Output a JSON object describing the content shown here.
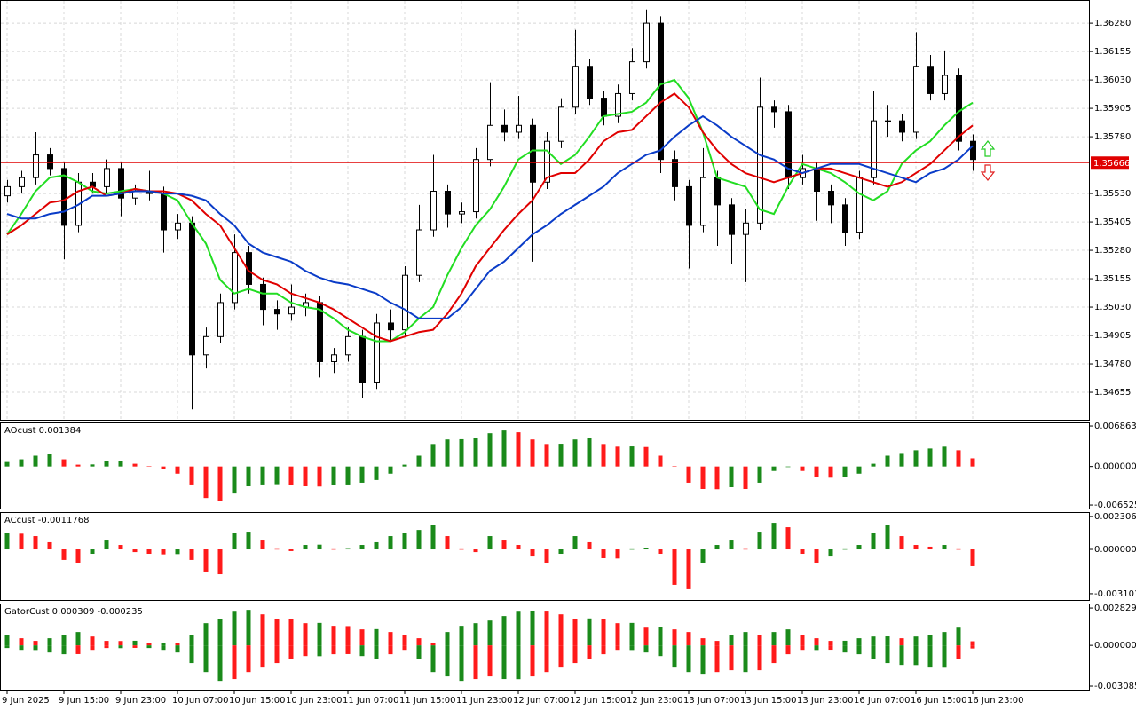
{
  "chart_data": [
    {
      "type": "candlestick",
      "ylim": [
        1.34534,
        1.36382
      ],
      "yticks": [
        {
          "value": 1.3628,
          "label": "1.36280"
        },
        1.36155,
        {
          "value": 1.3603,
          "label": "1.36030"
        },
        1.35905,
        {
          "value": 1.3578,
          "label": "1.35780"
        },
        {
          "value": 1.3553,
          "label": "1.35530"
        },
        1.35405,
        {
          "value": 1.3528,
          "label": "1.35280"
        },
        1.35155,
        {
          "value": 1.3503,
          "label": "1.35030"
        },
        1.34905,
        {
          "value": 1.3478,
          "label": "1.34780"
        },
        1.34655
      ],
      "grid": true,
      "up_color": "#ffffff",
      "down_color": "#000000",
      "current_price": 1.35666,
      "current_price_color": "#e00000",
      "time_labels": [
        "9 Jun 2025",
        "9 Jun 15:00",
        "9 Jun 23:00",
        "10 Jun 07:00",
        "10 Jun 15:00",
        "10 Jun 23:00",
        "11 Jun 07:00",
        "11 Jun 15:00",
        "11 Jun 23:00",
        "12 Jun 07:00",
        "12 Jun 15:00",
        "12 Jun 23:00",
        "13 Jun 07:00",
        "13 Jun 15:00",
        "13 Jun 23:00",
        "16 Jun 07:00",
        "16 Jun 15:00",
        "16 Jun 23:00"
      ],
      "candles": [
        [
          1.3552,
          1.3559,
          1.3549,
          1.3556
        ],
        [
          1.3556,
          1.3563,
          1.3553,
          1.356
        ],
        [
          1.356,
          1.358,
          1.3557,
          1.357
        ],
        [
          1.357,
          1.3573,
          1.3561,
          1.3564
        ],
        [
          1.3564,
          1.3567,
          1.3524,
          1.3539
        ],
        [
          1.3539,
          1.3562,
          1.3536,
          1.3558
        ],
        [
          1.3558,
          1.3562,
          1.3553,
          1.3556
        ],
        [
          1.3556,
          1.3568,
          1.3553,
          1.3564
        ],
        [
          1.3564,
          1.3567,
          1.3543,
          1.3551
        ],
        [
          1.3551,
          1.3557,
          1.3548,
          1.3554
        ],
        [
          1.3554,
          1.3563,
          1.355,
          1.3553
        ],
        [
          1.3553,
          1.3556,
          1.3527,
          1.3537
        ],
        [
          1.3537,
          1.3544,
          1.3533,
          1.354
        ],
        [
          1.354,
          1.3543,
          1.3458,
          1.3482
        ],
        [
          1.3482,
          1.3494,
          1.3476,
          1.349
        ],
        [
          1.349,
          1.3509,
          1.3487,
          1.3505
        ],
        [
          1.3505,
          1.3535,
          1.3502,
          1.3527
        ],
        [
          1.3527,
          1.353,
          1.3509,
          1.3513
        ],
        [
          1.3513,
          1.3516,
          1.3495,
          1.3502
        ],
        [
          1.3502,
          1.3506,
          1.3493,
          1.35
        ],
        [
          1.35,
          1.3513,
          1.3497,
          1.3503
        ],
        [
          1.3503,
          1.3509,
          1.3499,
          1.3505
        ],
        [
          1.3505,
          1.3508,
          1.3472,
          1.3479
        ],
        [
          1.3479,
          1.3485,
          1.3474,
          1.3482
        ],
        [
          1.3482,
          1.3494,
          1.3479,
          1.349
        ],
        [
          1.349,
          1.3493,
          1.3463,
          1.347
        ],
        [
          1.347,
          1.35,
          1.3467,
          1.3496
        ],
        [
          1.3496,
          1.3502,
          1.3488,
          1.3493
        ],
        [
          1.3493,
          1.3521,
          1.349,
          1.3517
        ],
        [
          1.3517,
          1.3548,
          1.3514,
          1.3537
        ],
        [
          1.3537,
          1.357,
          1.3534,
          1.3554
        ],
        [
          1.3554,
          1.3557,
          1.3538,
          1.3544
        ],
        [
          1.3544,
          1.3549,
          1.354,
          1.3545
        ],
        [
          1.3545,
          1.3573,
          1.3542,
          1.3568
        ],
        [
          1.3568,
          1.3602,
          1.3565,
          1.3583
        ],
        [
          1.3583,
          1.359,
          1.3576,
          1.358
        ],
        [
          1.358,
          1.3596,
          1.3577,
          1.3583
        ],
        [
          1.3583,
          1.3586,
          1.3523,
          1.3558
        ],
        [
          1.3558,
          1.358,
          1.3555,
          1.3576
        ],
        [
          1.3576,
          1.3595,
          1.3573,
          1.3591
        ],
        [
          1.3591,
          1.3625,
          1.3588,
          1.3609
        ],
        [
          1.3609,
          1.3612,
          1.3592,
          1.3595
        ],
        [
          1.3595,
          1.3598,
          1.3583,
          1.3587
        ],
        [
          1.3587,
          1.3601,
          1.3584,
          1.3597
        ],
        [
          1.3597,
          1.3617,
          1.3594,
          1.3611
        ],
        [
          1.3611,
          1.3634,
          1.3608,
          1.3628
        ],
        [
          1.3628,
          1.3631,
          1.3562,
          1.3568
        ],
        [
          1.3568,
          1.3572,
          1.355,
          1.3556
        ],
        [
          1.3556,
          1.3559,
          1.352,
          1.3539
        ],
        [
          1.3539,
          1.3573,
          1.3536,
          1.356
        ],
        [
          1.356,
          1.3563,
          1.353,
          1.3548
        ],
        [
          1.3548,
          1.3551,
          1.3522,
          1.3535
        ],
        [
          1.3535,
          1.3546,
          1.3514,
          1.354
        ],
        [
          1.354,
          1.3604,
          1.3537,
          1.3591
        ],
        [
          1.3591,
          1.3594,
          1.3582,
          1.3589
        ],
        [
          1.3589,
          1.3592,
          1.3555,
          1.356
        ],
        [
          1.356,
          1.357,
          1.3557,
          1.3564
        ],
        [
          1.3564,
          1.3567,
          1.3541,
          1.3554
        ],
        [
          1.3554,
          1.3557,
          1.354,
          1.3548
        ],
        [
          1.3548,
          1.3551,
          1.353,
          1.3536
        ],
        [
          1.3536,
          1.3563,
          1.3533,
          1.356
        ],
        [
          1.356,
          1.3598,
          1.3557,
          1.3585
        ],
        [
          1.3585,
          1.3592,
          1.3578,
          1.3585
        ],
        [
          1.3585,
          1.3588,
          1.3576,
          1.358
        ],
        [
          1.358,
          1.3624,
          1.3577,
          1.3609
        ],
        [
          1.3609,
          1.3614,
          1.3594,
          1.3597
        ],
        [
          1.3597,
          1.3616,
          1.3594,
          1.3605
        ],
        [
          1.3605,
          1.3608,
          1.3572,
          1.3576
        ],
        [
          1.3576,
          1.3579,
          1.3563,
          1.3568
        ]
      ],
      "series": [
        {
          "color": "#22dd22",
          "values": [
            1.3535,
            1.3544,
            1.3554,
            1.356,
            1.3561,
            1.3558,
            1.3554,
            1.3553,
            1.3554,
            1.3555,
            1.3554,
            1.3553,
            1.355,
            1.354,
            1.3531,
            1.3515,
            1.3509,
            1.3511,
            1.3509,
            1.3509,
            1.3505,
            1.3503,
            1.3502,
            1.3498,
            1.3493,
            1.349,
            1.3488,
            1.3488,
            1.3492,
            1.3498,
            1.3503,
            1.3517,
            1.3529,
            1.3539,
            1.3546,
            1.3556,
            1.3568,
            1.3572,
            1.3572,
            1.3566,
            1.357,
            1.3578,
            1.3587,
            1.3588,
            1.3589,
            1.3593,
            1.3601,
            1.3603,
            1.3595,
            1.358,
            1.356,
            1.3558,
            1.3556,
            1.3546,
            1.3544,
            1.3556,
            1.3566,
            1.3564,
            1.3562,
            1.3558,
            1.3553,
            1.355,
            1.3554,
            1.3566,
            1.3572,
            1.3576,
            1.3583,
            1.3589,
            1.3593
          ]
        },
        {
          "color": "#e00000",
          "values": [
            1.3535,
            1.3539,
            1.3544,
            1.3549,
            1.355,
            1.3554,
            1.3556,
            1.3552,
            1.3553,
            1.3555,
            1.3554,
            1.3554,
            1.3553,
            1.355,
            1.3544,
            1.3539,
            1.3529,
            1.3519,
            1.3515,
            1.3513,
            1.3509,
            1.3507,
            1.3505,
            1.3502,
            1.3498,
            1.3494,
            1.349,
            1.3488,
            1.349,
            1.3492,
            1.3493,
            1.35,
            1.3509,
            1.3521,
            1.3529,
            1.3537,
            1.3544,
            1.355,
            1.356,
            1.3562,
            1.3562,
            1.3568,
            1.3576,
            1.358,
            1.3581,
            1.3587,
            1.3593,
            1.3597,
            1.3591,
            1.358,
            1.3572,
            1.3566,
            1.3562,
            1.356,
            1.3558,
            1.356,
            1.3562,
            1.3564,
            1.3564,
            1.3562,
            1.356,
            1.3558,
            1.3556,
            1.3558,
            1.3562,
            1.3566,
            1.3572,
            1.3578,
            1.3583
          ]
        },
        {
          "color": "#0a3cc8",
          "values": [
            1.3544,
            1.3542,
            1.3542,
            1.3544,
            1.3545,
            1.3548,
            1.3552,
            1.3552,
            1.3553,
            1.3554,
            1.3554,
            1.3553,
            1.3553,
            1.3552,
            1.355,
            1.3544,
            1.3539,
            1.3531,
            1.3527,
            1.3525,
            1.3523,
            1.3519,
            1.3516,
            1.3514,
            1.3513,
            1.3511,
            1.3509,
            1.3505,
            1.3502,
            1.3498,
            1.3498,
            1.3498,
            1.3503,
            1.3511,
            1.3519,
            1.3523,
            1.3529,
            1.3535,
            1.3539,
            1.3544,
            1.3548,
            1.3552,
            1.3556,
            1.3562,
            1.3566,
            1.357,
            1.3572,
            1.3578,
            1.3583,
            1.3587,
            1.3583,
            1.3578,
            1.3574,
            1.357,
            1.3568,
            1.3564,
            1.3562,
            1.3564,
            1.3566,
            1.3566,
            1.3566,
            1.3564,
            1.3562,
            1.356,
            1.3558,
            1.3562,
            1.3564,
            1.3568,
            1.3574
          ]
        }
      ]
    },
    {
      "type": "histogram",
      "title": "AOcust 0.001384",
      "ylim": [
        -0.00712,
        0.00747
      ],
      "yticks": [
        0.006863,
        {
          "value": 0,
          "label": "0.000000"
        },
        -0.006525
      ],
      "up_color": "#1a8a1a",
      "down_color": "#ff1a1a",
      "values": [
        0.00076,
        0.00122,
        0.00183,
        0.00214,
        0.00122,
        0.00031,
        0.00035,
        0.00092,
        0.00095,
        0.00046,
        3e-05,
        -0.00046,
        -0.00122,
        -0.00305,
        -0.00534,
        -0.0058,
        -0.00458,
        -0.00336,
        -0.00305,
        -0.003,
        -0.0031,
        -0.00336,
        -0.0034,
        -0.0031,
        -0.00305,
        -0.00275,
        -0.00229,
        -0.00122,
        0.00031,
        0.00183,
        0.00381,
        0.00458,
        0.00462,
        0.00488,
        0.00564,
        0.0061,
        0.0058,
        0.00458,
        0.00381,
        0.00385,
        0.00458,
        0.00488,
        0.00381,
        0.00336,
        0.0034,
        0.0033,
        0.00183,
        5e-05,
        -0.00275,
        -0.00381,
        -0.00385,
        -0.00351,
        -0.00381,
        -0.00275,
        -0.00076,
        -0.0001,
        -0.00076,
        -0.00183,
        -0.0019,
        -0.0018,
        -0.00122,
        0.00046,
        0.00183,
        0.00229,
        0.00275,
        0.00305,
        0.00336,
        0.00275,
        0.001384
      ]
    },
    {
      "type": "histogram",
      "title": "ACcust -0.0011768",
      "ylim": [
        -0.00354,
        0.00261
      ],
      "yticks": [
        0.0023065,
        {
          "value": 0,
          "label": "0.0000000"
        },
        {
          "value": -0.003101,
          "label": "-0.0031010"
        }
      ],
      "up_color": "#1a8a1a",
      "down_color": "#ff1a1a",
      "values": [
        0.00112,
        0.0011,
        0.00093,
        0.0005,
        -0.00074,
        -0.00093,
        -0.00031,
        0.00062,
        0.00031,
        -0.00019,
        -0.00031,
        -0.00035,
        -0.00033,
        -0.00074,
        -0.00155,
        -0.00174,
        0.00112,
        0.00124,
        0.00062,
        2e-05,
        -0.00012,
        0.00031,
        0.00033,
        1e-05,
        3e-05,
        0.00031,
        0.0005,
        0.00093,
        0.00112,
        0.00136,
        0.00174,
        0.00093,
        1e-05,
        -0.00019,
        0.00093,
        0.00062,
        0.00031,
        -0.0005,
        -0.00093,
        -0.00031,
        0.00093,
        0.0005,
        -0.00062,
        -0.00064,
        1e-05,
        0.00012,
        -0.00031,
        -0.00248,
        -0.00279,
        -0.00093,
        0.00031,
        0.00062,
        2e-05,
        0.00124,
        0.00186,
        0.00155,
        -0.00031,
        -0.00093,
        -0.0005,
        1e-05,
        0.00031,
        0.00112,
        0.00174,
        0.00093,
        0.00031,
        0.00019,
        0.00031,
        1e-05,
        -0.0011768
      ]
    },
    {
      "type": "gator",
      "title": "GatorCust 0.000309 -0.000235",
      "ylim": [
        -0.00342,
        0.00317
      ],
      "yticks": [
        0.002829,
        {
          "value": 0,
          "label": "0.000000"
        },
        -0.003085
      ],
      "up_color": "#1a8a1a",
      "down_color": "#ff1a1a",
      "upper": [
        0.00081,
        0.00054,
        0.00034,
        0.00054,
        0.00081,
        0.00101,
        0.00067,
        0.00034,
        0.00033,
        0.00035,
        0.0002,
        0.00021,
        0.00019,
        0.00081,
        0.00168,
        0.00202,
        0.00255,
        0.00269,
        0.00235,
        0.00202,
        0.002,
        0.00168,
        0.0017,
        0.00148,
        0.00146,
        0.00121,
        0.00123,
        0.00101,
        0.00081,
        0.00054,
        0.0002,
        0.00101,
        0.00148,
        0.00168,
        0.00188,
        0.00222,
        0.00255,
        0.00258,
        0.00256,
        0.00235,
        0.00202,
        0.00204,
        0.002,
        0.00168,
        0.0017,
        0.00134,
        0.00136,
        0.00121,
        0.00101,
        0.00054,
        0.00034,
        0.00081,
        0.00101,
        0.00081,
        0.00101,
        0.00121,
        0.00081,
        0.00054,
        0.00034,
        0.00035,
        0.00054,
        0.00067,
        0.00068,
        0.00054,
        0.00067,
        0.00081,
        0.00101,
        0.00134,
        0.000309
      ],
      "lower": [
        -0.0002,
        -0.00034,
        -0.00035,
        -0.00054,
        -0.00067,
        -0.00066,
        -0.00034,
        -0.0002,
        -0.00021,
        -0.00019,
        -0.0002,
        -0.00034,
        -0.00054,
        -0.00134,
        -0.00202,
        -0.00269,
        -0.00255,
        -0.00202,
        -0.00168,
        -0.00134,
        -0.00101,
        -0.00081,
        -0.00082,
        -0.00067,
        -0.00066,
        -0.00081,
        -0.00101,
        -0.00067,
        -0.00034,
        -0.00101,
        -0.00202,
        -0.00235,
        -0.00269,
        -0.00255,
        -0.00235,
        -0.00255,
        -0.00256,
        -0.00235,
        -0.00202,
        -0.00168,
        -0.00134,
        -0.00101,
        -0.00067,
        -0.00034,
        -0.00035,
        -0.00054,
        -0.00081,
        -0.00168,
        -0.00202,
        -0.00215,
        -0.00202,
        -0.00188,
        -0.00202,
        -0.00188,
        -0.00134,
        -0.00067,
        -0.00034,
        -0.00035,
        -0.00033,
        -0.00054,
        -0.00067,
        -0.00101,
        -0.00134,
        -0.00148,
        -0.00149,
        -0.00168,
        -0.00169,
        -0.00101,
        -0.000235
      ]
    }
  ]
}
